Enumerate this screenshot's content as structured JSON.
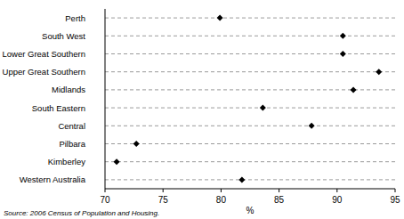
{
  "chart_data": {
    "type": "dot",
    "orientation": "horizontal",
    "categories": [
      "Perth",
      "South West",
      "Lower Great Southern",
      "Upper Great Southern",
      "Midlands",
      "South Eastern",
      "Central",
      "Pilbara",
      "Kimberley",
      "Western Australia"
    ],
    "values": [
      79.9,
      90.5,
      90.5,
      93.6,
      91.4,
      83.6,
      87.8,
      72.7,
      71.0,
      81.8
    ],
    "color": "#000000",
    "marker": "diamond",
    "xlim": [
      70,
      95
    ],
    "xticks": [
      70,
      75,
      80,
      85,
      90,
      95
    ],
    "xlabel": "%",
    "grid": true,
    "annotations": [
      "Source: 2006 Census of Population and Housing."
    ]
  }
}
